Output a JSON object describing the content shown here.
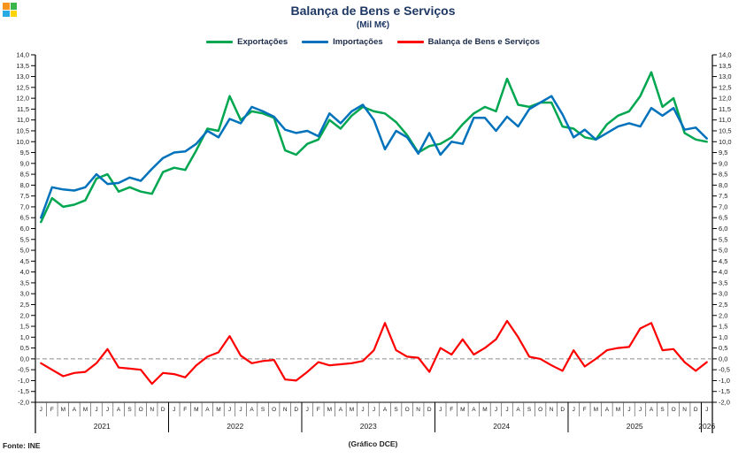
{
  "header": {
    "title": "Balança de Bens e Serviços",
    "subtitle": "(Mil M€)"
  },
  "footer": {
    "source": "Fonte: INE",
    "note": "(Gráfico DCE)"
  },
  "logo": {
    "name": "app-logo",
    "colors": [
      "#F7941D",
      "#39B54A",
      "#27AAE1",
      "#FFD400"
    ]
  },
  "chart_data": {
    "type": "line",
    "title": "Balança de Bens e Serviços",
    "unit": "(Mil M€)",
    "ylabel": "",
    "xlabel": "",
    "ylim": [
      -2,
      14
    ],
    "ytick_step": 0.5,
    "decimal_separator": ",",
    "grid": "none",
    "zero_line_dashed": true,
    "legend_position": "top",
    "dual_y_axis": true,
    "month_letters": [
      "J",
      "F",
      "M",
      "A",
      "M",
      "J",
      "J",
      "A",
      "S",
      "O",
      "N",
      "D"
    ],
    "year_groups": [
      {
        "label": "2021",
        "months": 12
      },
      {
        "label": "2022",
        "months": 12
      },
      {
        "label": "2023",
        "months": 12
      },
      {
        "label": "2024",
        "months": 12
      },
      {
        "label": "2025",
        "months": 12
      },
      {
        "label": "2026",
        "months": 1
      }
    ],
    "series": [
      {
        "name": "Exportações",
        "color": "#00A650",
        "values": [
          6.3,
          7.4,
          7.0,
          7.1,
          7.3,
          8.3,
          8.5,
          7.7,
          7.9,
          7.7,
          7.6,
          8.6,
          8.8,
          8.7,
          9.6,
          10.6,
          10.5,
          12.1,
          11.0,
          11.4,
          11.3,
          11.1,
          9.6,
          9.4,
          9.9,
          10.1,
          11.0,
          10.6,
          11.2,
          11.6,
          11.4,
          11.3,
          10.9,
          10.3,
          9.5,
          9.8,
          9.9,
          10.2,
          10.8,
          11.3,
          11.6,
          11.4,
          12.9,
          11.7,
          11.6,
          11.8,
          11.8,
          10.7,
          10.6,
          10.2,
          10.1,
          10.8,
          11.2,
          11.4,
          12.1,
          13.2,
          11.6,
          12.0,
          10.4,
          10.1,
          10.0
        ]
      },
      {
        "name": "Importações",
        "color": "#0072BC",
        "values": [
          6.5,
          7.9,
          7.8,
          7.75,
          7.9,
          8.5,
          8.05,
          8.1,
          8.35,
          8.2,
          8.75,
          9.25,
          9.5,
          9.55,
          9.9,
          10.5,
          10.2,
          11.05,
          10.85,
          11.6,
          11.4,
          11.15,
          10.55,
          10.4,
          10.5,
          10.25,
          11.3,
          10.85,
          11.4,
          11.7,
          11.0,
          9.65,
          10.5,
          10.2,
          9.45,
          10.4,
          9.4,
          10.0,
          9.9,
          11.1,
          11.1,
          10.5,
          11.15,
          10.7,
          11.5,
          11.8,
          12.1,
          11.25,
          10.2,
          10.55,
          10.1,
          10.4,
          10.7,
          10.85,
          10.7,
          11.55,
          11.2,
          11.55,
          10.55,
          10.65,
          10.15
        ]
      },
      {
        "name": "Balança de Bens e Serviços",
        "color": "#FF0000",
        "values": [
          -0.2,
          -0.5,
          -0.8,
          -0.65,
          -0.6,
          -0.2,
          0.45,
          -0.4,
          -0.45,
          -0.5,
          -1.15,
          -0.65,
          -0.7,
          -0.85,
          -0.3,
          0.1,
          0.3,
          1.05,
          0.15,
          -0.2,
          -0.1,
          -0.05,
          -0.95,
          -1.0,
          -0.6,
          -0.15,
          -0.3,
          -0.25,
          -0.2,
          -0.1,
          0.4,
          1.65,
          0.4,
          0.1,
          0.05,
          -0.6,
          0.5,
          0.2,
          0.9,
          0.2,
          0.5,
          0.9,
          1.75,
          1.0,
          0.1,
          0.0,
          -0.3,
          -0.55,
          0.4,
          -0.35,
          0.0,
          0.4,
          0.5,
          0.55,
          1.4,
          1.65,
          0.4,
          0.45,
          -0.15,
          -0.55,
          -0.15
        ]
      }
    ]
  }
}
